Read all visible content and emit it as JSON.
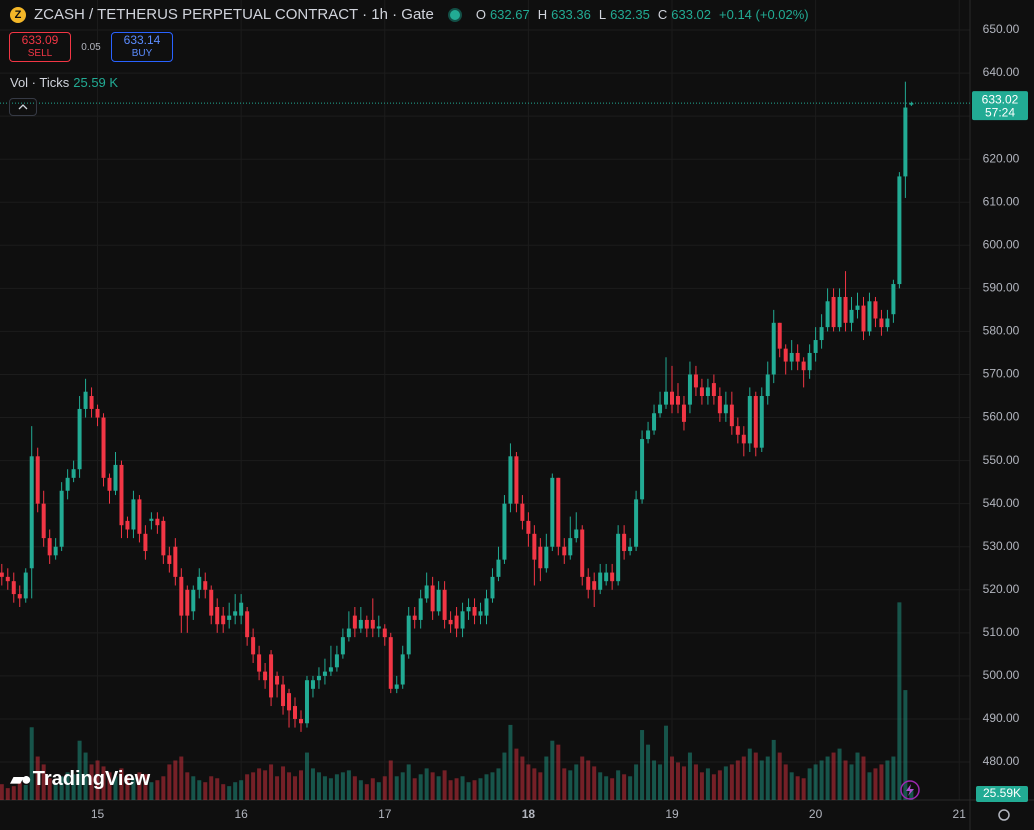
{
  "header": {
    "symbol": "ZCASH / TETHERUS PERPETUAL CONTRACT · 1h · Gate",
    "o": "O",
    "h": "H",
    "l": "L",
    "c": "C",
    "change": "+0.14 (+0.02%)",
    "sell_price": 633.09,
    "sell_label": "SELL",
    "spread": 0.05,
    "buy_price": 633.14,
    "buy_label": "BUY",
    "volume_title": "Vol · Ticks",
    "volume_value": "25.59 K",
    "countdown": "57:24",
    "brand": "TradingView"
  },
  "chart_data": {
    "type": "candlestick",
    "up_color": "#22ab94",
    "down_color": "#f23645",
    "ylim": [
      471.18,
      656.97
    ],
    "yticks": [
      {
        "value": 480,
        "label": "480.00"
      },
      {
        "value": 490,
        "label": "490.00"
      },
      {
        "value": 500,
        "label": "500.00"
      },
      {
        "value": 510,
        "label": "510.00"
      },
      {
        "value": 520,
        "label": "520.00"
      },
      {
        "value": 530,
        "label": "530.00"
      },
      {
        "value": 540,
        "label": "540.00"
      },
      {
        "value": 550,
        "label": "550.00"
      },
      {
        "value": 560,
        "label": "560.00"
      },
      {
        "value": 570,
        "label": "570.00"
      },
      {
        "value": 580,
        "label": "580.00"
      },
      {
        "value": 590,
        "label": "590.00"
      },
      {
        "value": 600,
        "label": "600.00"
      },
      {
        "value": 610,
        "label": "610.00"
      },
      {
        "value": 620,
        "label": "620.00"
      },
      {
        "value": 630,
        "label": "630.00"
      },
      {
        "value": 640,
        "label": "640.00"
      },
      {
        "value": 650,
        "label": "650.00"
      }
    ],
    "xlim": [
      -0.3,
      161.8
    ],
    "xticks": [
      {
        "value": 16,
        "label": "15"
      },
      {
        "value": 40,
        "label": "16"
      },
      {
        "value": 64,
        "label": "17"
      },
      {
        "value": 88,
        "label": "18"
      },
      {
        "value": 112,
        "label": "19"
      },
      {
        "value": 136,
        "label": "20"
      },
      {
        "value": 160,
        "label": "21"
      }
    ],
    "vol_ylim": [
      0,
      640
    ],
    "volume_last_label": "25.59K",
    "open": [
      524,
      523,
      522,
      519,
      518,
      525,
      551,
      540,
      532,
      528,
      530,
      543,
      546,
      548,
      562,
      565,
      562,
      560,
      546,
      543,
      549,
      536,
      534,
      541,
      533,
      536,
      536.5,
      536,
      528,
      530,
      523,
      520,
      515,
      520,
      522,
      520,
      516,
      514,
      513,
      514,
      514,
      515,
      509,
      505,
      501,
      505,
      500,
      498,
      496,
      493,
      490,
      489,
      497,
      499,
      500,
      501,
      502,
      505,
      509,
      514,
      511,
      513,
      513,
      511,
      511,
      509,
      497,
      498,
      505,
      514,
      513,
      518,
      521,
      515,
      520,
      513,
      514,
      511,
      515,
      516,
      514,
      514,
      518,
      523,
      527,
      540,
      551,
      540,
      536,
      533,
      530,
      525,
      530,
      546,
      530,
      528,
      532,
      534,
      523,
      522,
      520,
      522,
      524,
      522,
      533,
      529,
      530,
      541,
      555,
      557,
      561,
      563,
      566,
      565,
      563,
      563,
      570,
      567,
      565,
      568,
      565,
      561,
      563,
      558,
      556,
      554,
      565,
      553,
      565,
      570,
      582,
      576,
      573,
      575,
      573,
      571,
      575,
      578,
      581,
      588,
      581,
      588,
      582,
      585,
      586,
      580,
      587,
      583,
      581,
      584,
      591,
      616,
      632.67
    ],
    "high": [
      526,
      525,
      524,
      521,
      525,
      558,
      553,
      543,
      534,
      532,
      545,
      548,
      550,
      565,
      569,
      567,
      563,
      561,
      547,
      552,
      550,
      537,
      543,
      542,
      535,
      538,
      538,
      537,
      530,
      532,
      525,
      521,
      521,
      525,
      524,
      521,
      518,
      516,
      517,
      519,
      519,
      516,
      511,
      507,
      503,
      506,
      501,
      500,
      497,
      495,
      492,
      500,
      500,
      502,
      504,
      507,
      507,
      511,
      515,
      516,
      516,
      514,
      518,
      514,
      512,
      510,
      500,
      507,
      516,
      516,
      520,
      524,
      523,
      522,
      522,
      515,
      516,
      517,
      518,
      518,
      517,
      520,
      525,
      530,
      542,
      554,
      552,
      542,
      538,
      535,
      532,
      533,
      547,
      546,
      532,
      537,
      538,
      535,
      525,
      524,
      526,
      526,
      526,
      535,
      535,
      532,
      543,
      557,
      559,
      563,
      566,
      574,
      572,
      568,
      565,
      573,
      572,
      569,
      569,
      570,
      567,
      566,
      566,
      560,
      558,
      567,
      566,
      567,
      573,
      585,
      582,
      577,
      578,
      577,
      574,
      577,
      581,
      584,
      590,
      590,
      590,
      594,
      588,
      589,
      588,
      589,
      588,
      585,
      585,
      592,
      617,
      638,
      633.36
    ],
    "low": [
      521,
      520,
      517,
      516,
      517,
      518,
      538,
      530,
      526,
      527,
      529,
      541,
      545,
      546,
      560,
      560,
      558,
      544,
      540,
      542,
      532,
      532,
      532,
      531,
      527,
      534,
      533,
      526,
      524,
      521,
      510,
      510,
      513,
      518,
      518,
      512,
      510,
      510,
      511,
      512,
      512,
      507,
      503,
      499,
      497,
      493,
      495,
      491,
      488,
      488,
      487,
      488,
      495,
      497,
      498,
      500,
      501,
      504,
      508,
      509,
      510,
      509,
      509,
      509,
      507,
      496,
      496,
      497,
      504,
      511,
      511,
      517,
      513,
      514,
      511,
      510,
      509,
      509,
      513,
      512,
      512,
      512,
      517,
      522,
      526,
      538,
      538,
      534,
      530,
      521,
      522,
      524,
      529,
      528,
      526,
      527,
      531,
      521,
      518,
      516,
      519,
      521,
      520,
      521,
      527,
      528,
      529,
      540,
      554,
      556,
      560,
      562,
      561,
      561,
      557,
      561,
      565,
      563,
      563,
      563,
      559,
      559,
      556,
      554,
      551,
      552,
      551,
      552,
      563,
      568,
      574,
      570,
      571,
      571,
      567,
      569,
      573,
      576,
      580,
      580,
      580,
      580,
      580,
      583,
      578,
      579,
      581,
      579,
      580,
      582,
      590,
      611,
      632.35
    ],
    "close": [
      523,
      522,
      519,
      518,
      524,
      551,
      540,
      532,
      528,
      530,
      543,
      546,
      548,
      562,
      566,
      562,
      560,
      546,
      543,
      549,
      535,
      534,
      541,
      533,
      529,
      536.5,
      535,
      528,
      526,
      523,
      514,
      514,
      520,
      523,
      520,
      514,
      512,
      512,
      514,
      515,
      517,
      509,
      505,
      501,
      499,
      495,
      498,
      493,
      492,
      490,
      489,
      499,
      499,
      500,
      501,
      502,
      505,
      509,
      511,
      511,
      513,
      511,
      511,
      511.5,
      509,
      497,
      498,
      505,
      514,
      513,
      518,
      521,
      515,
      520,
      513,
      512,
      511,
      515,
      516,
      514,
      515,
      518,
      523,
      527,
      540,
      551,
      540,
      536,
      533,
      527,
      525,
      530,
      546,
      530,
      528,
      532,
      534,
      523,
      520,
      520,
      524,
      524,
      522,
      533,
      529,
      530,
      541,
      555,
      557,
      561,
      563,
      566,
      563,
      563,
      559,
      570,
      567,
      565,
      567,
      565,
      561,
      563,
      558,
      556,
      554,
      565,
      553,
      565,
      570,
      582,
      576,
      573,
      575,
      573,
      571,
      575,
      578,
      581,
      587,
      581,
      588,
      582,
      585,
      586,
      580,
      587,
      583,
      581,
      583,
      591,
      616,
      632,
      633.02
    ],
    "volume": [
      40,
      30,
      35,
      45,
      38,
      184,
      110,
      90,
      55,
      40,
      60,
      70,
      65,
      150,
      120,
      90,
      100,
      85,
      70,
      60,
      80,
      60,
      55,
      70,
      65,
      45,
      50,
      60,
      90,
      100,
      110,
      70,
      60,
      50,
      45,
      60,
      55,
      40,
      35,
      45,
      50,
      65,
      70,
      80,
      75,
      90,
      60,
      85,
      70,
      60,
      75,
      120,
      80,
      70,
      60,
      55,
      65,
      70,
      75,
      60,
      50,
      40,
      55,
      45,
      60,
      100,
      60,
      70,
      90,
      55,
      65,
      80,
      70,
      60,
      75,
      50,
      55,
      60,
      45,
      50,
      55,
      65,
      70,
      80,
      120,
      190,
      130,
      110,
      90,
      80,
      70,
      110,
      150,
      140,
      80,
      75,
      90,
      110,
      100,
      85,
      70,
      60,
      55,
      75,
      65,
      60,
      90,
      177,
      140,
      100,
      90,
      188,
      110,
      95,
      85,
      120,
      90,
      70,
      80,
      65,
      75,
      85,
      90,
      100,
      110,
      130,
      120,
      100,
      110,
      152,
      120,
      90,
      70,
      60,
      55,
      80,
      90,
      100,
      110,
      120,
      130,
      100,
      90,
      120,
      110,
      70,
      80,
      90,
      100,
      110,
      500,
      278,
      25.59
    ]
  }
}
